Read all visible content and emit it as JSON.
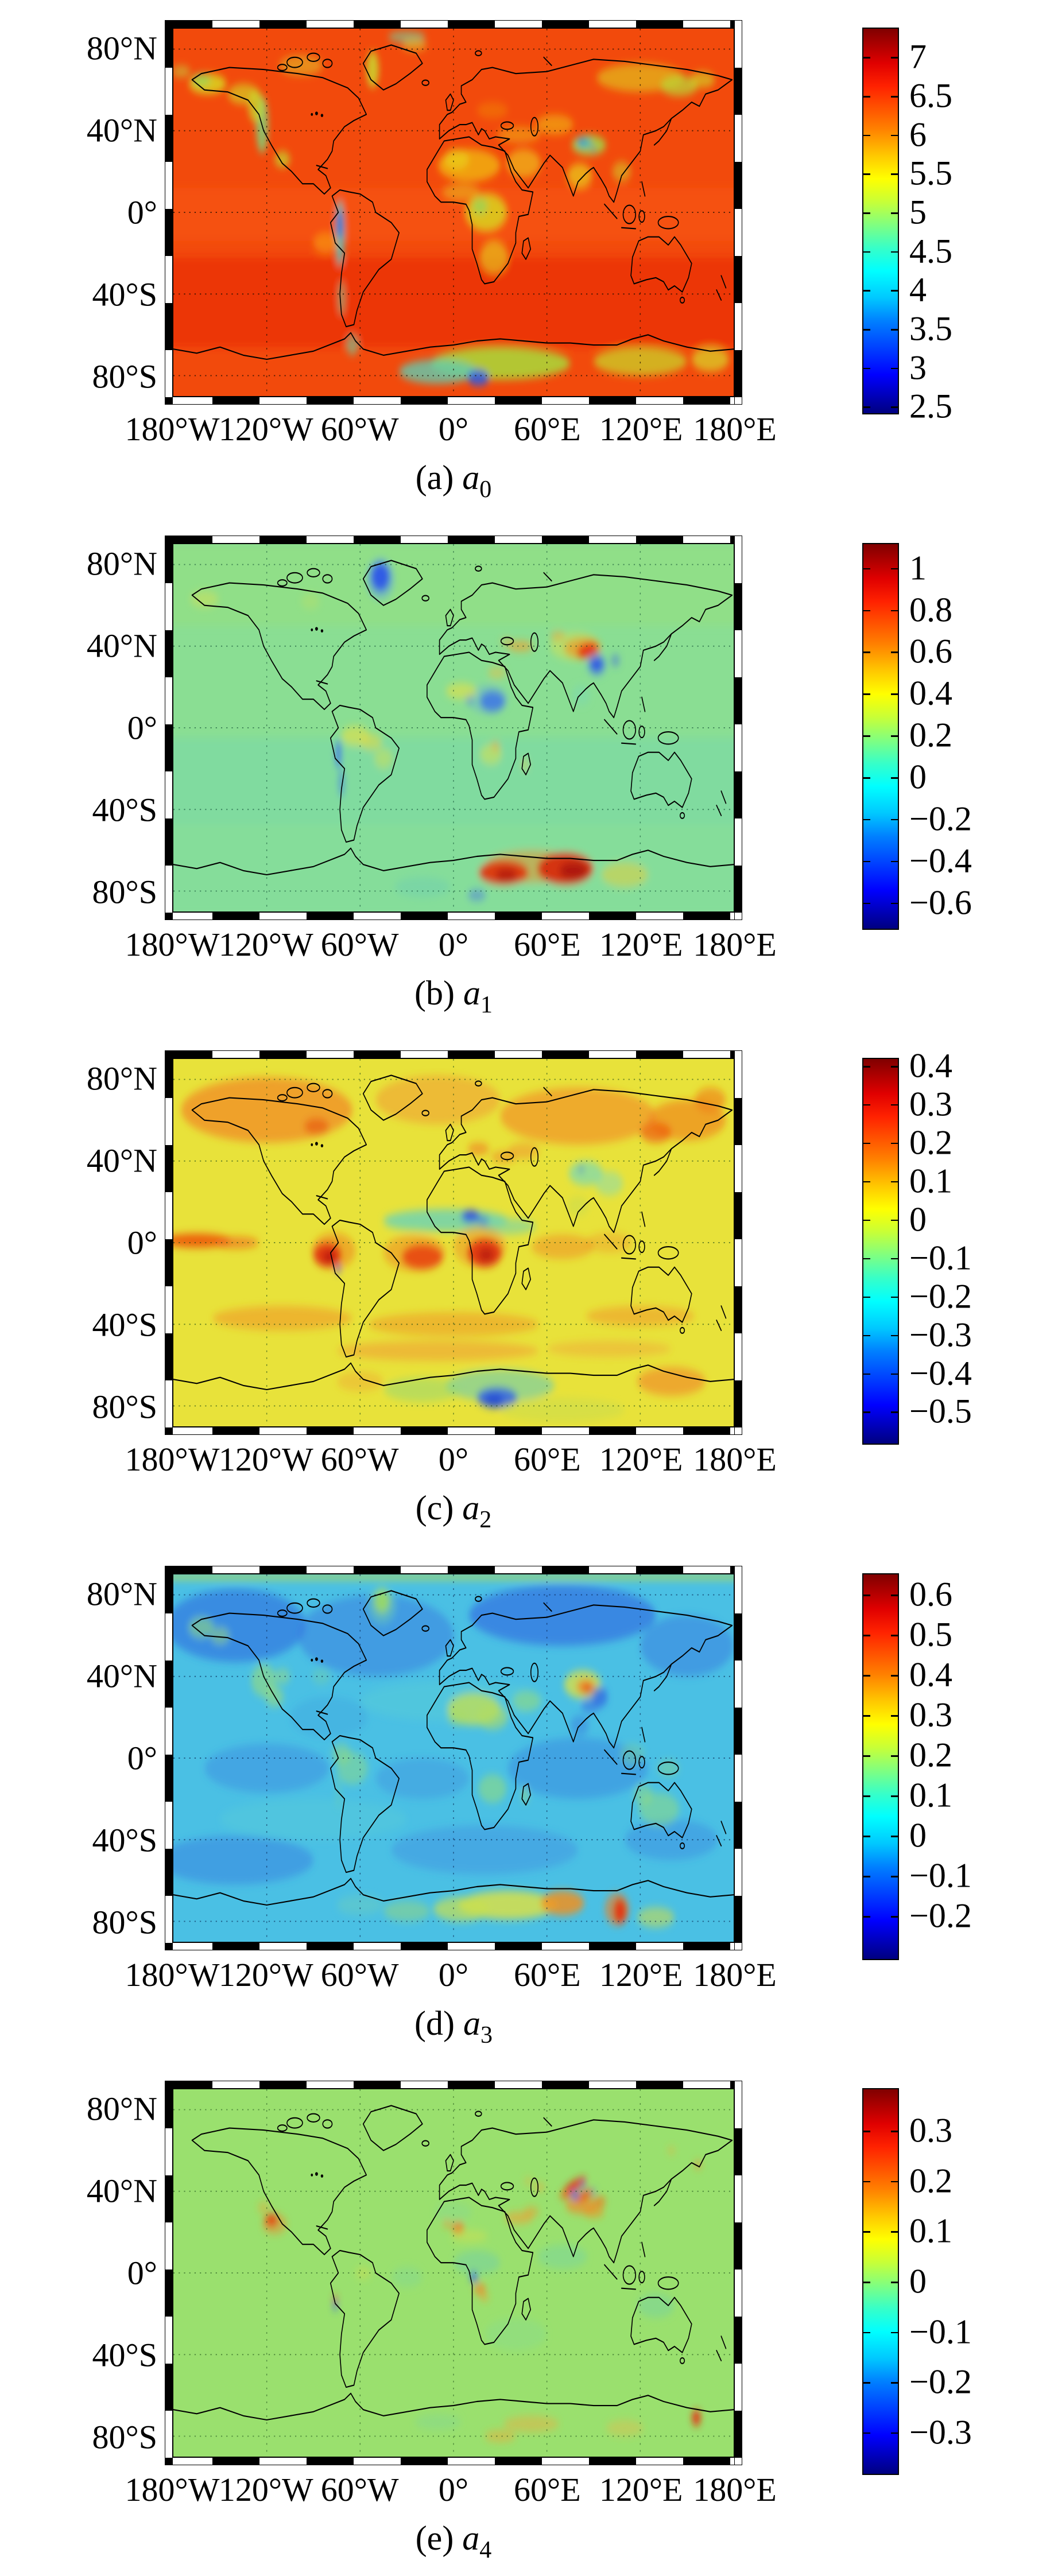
{
  "axes": {
    "lat_ticks": [
      {
        "label": "80°N",
        "deg": 80
      },
      {
        "label": "40°N",
        "deg": 40
      },
      {
        "label": "0°",
        "deg": 0
      },
      {
        "label": "40°S",
        "deg": -40
      },
      {
        "label": "80°S",
        "deg": -80
      }
    ],
    "lon_ticks": [
      {
        "label": "180°W",
        "deg": -180
      },
      {
        "label": "120°W",
        "deg": -120
      },
      {
        "label": "60°W",
        "deg": -60
      },
      {
        "label": "0°",
        "deg": 0
      },
      {
        "label": "60°E",
        "deg": 60
      },
      {
        "label": "120°E",
        "deg": 120
      },
      {
        "label": "180°E",
        "deg": 180
      }
    ]
  },
  "chart_data": [
    {
      "type": "heatmap",
      "panel": "a",
      "caption_prefix": "(a)",
      "caption_var": "a",
      "caption_sub": "0",
      "colormap": "jet",
      "base_color": "#f24a0c",
      "projection": "equirectangular world map, 180W-180E, 90S-90N",
      "colorbar": {
        "min": 2.4,
        "max": 7.38,
        "ticks": [
          {
            "label": "7",
            "value": 7
          },
          {
            "label": "6.5",
            "value": 6.5
          },
          {
            "label": "6",
            "value": 6
          },
          {
            "label": "5.5",
            "value": 5.5
          },
          {
            "label": "5",
            "value": 5
          },
          {
            "label": "4.5",
            "value": 4.5
          },
          {
            "label": "4",
            "value": 4
          },
          {
            "label": "3.5",
            "value": 3.5
          },
          {
            "label": "3",
            "value": 3
          },
          {
            "label": "2.5",
            "value": 2.5
          }
        ]
      },
      "features": [
        "oceans mostly 6-7 (red/orange)",
        "yellow-green 5-5.5 over Sahara, southern Africa, Arabia, Alaska, Siberia",
        "low 3-4.5 (cyan/blue) along Andes and Himalaya-Tibet",
        "green-cyan band with blue spot (3-5) along Antarctic coast 0-60E"
      ]
    },
    {
      "type": "heatmap",
      "panel": "b",
      "caption_prefix": "(b)",
      "caption_var": "a",
      "caption_sub": "1",
      "colormap": "jet",
      "base_color": "#8ade93",
      "projection": "equirectangular world map, 180W-180E, 90S-90N",
      "colorbar": {
        "min": -0.73,
        "max": 1.12,
        "ticks": [
          {
            "label": "1",
            "value": 1
          },
          {
            "label": "0.8",
            "value": 0.8
          },
          {
            "label": "0.6",
            "value": 0.6
          },
          {
            "label": "0.4",
            "value": 0.4
          },
          {
            "label": "0.2",
            "value": 0.2
          },
          {
            "label": "0",
            "value": 0
          },
          {
            "label": "−0.2",
            "value": -0.2
          },
          {
            "label": "−0.4",
            "value": -0.4
          },
          {
            "label": "−0.6",
            "value": -0.6
          }
        ]
      },
      "features": [
        "background near 0-0.15 (green)",
        "blue minimum (-0.4) over Greenland",
        "red maximum (~0.9) over Tibetan Plateau with blue patch southeast",
        "blue patch over Sudan/Chad",
        "red maxima (~1) over East Antarctica",
        "yellow patches over Amazon, Sahel, southern Africa"
      ]
    },
    {
      "type": "heatmap",
      "panel": "c",
      "caption_prefix": "(c)",
      "caption_var": "a",
      "caption_sub": "2",
      "colormap": "jet",
      "base_color": "#e8e23a",
      "projection": "equirectangular world map, 180W-180E, 90S-90N",
      "colorbar": {
        "min": -0.586,
        "max": 0.421,
        "ticks": [
          {
            "label": "0.4",
            "value": 0.4
          },
          {
            "label": "0.3",
            "value": 0.3
          },
          {
            "label": "0.2",
            "value": 0.2
          },
          {
            "label": "0.1",
            "value": 0.1
          },
          {
            "label": "0",
            "value": 0
          },
          {
            "label": "−0.1",
            "value": -0.1
          },
          {
            "label": "−0.2",
            "value": -0.2
          },
          {
            "label": "−0.3",
            "value": -0.3
          },
          {
            "label": "−0.4",
            "value": -0.4
          },
          {
            "label": "−0.5",
            "value": -0.5
          }
        ]
      },
      "features": [
        "background ~0 (yellow) with orange bands (0.1-0.2) at high northern latitudes and 50-60S",
        "red maxima (0.3-0.4) near equator: Peru coast, tropical Atlantic, central Africa",
        "cyan band with blue core (-0.3 to -0.5) just north of equator over Africa",
        "blue minimum over East Antarctica interior"
      ]
    },
    {
      "type": "heatmap",
      "panel": "d",
      "caption_prefix": "(d)",
      "caption_var": "a",
      "caption_sub": "3",
      "colormap": "jet",
      "base_color": "#4ac0e4",
      "projection": "equirectangular world map, 180W-180E, 90S-90N",
      "colorbar": {
        "min": -0.31,
        "max": 0.653,
        "ticks": [
          {
            "label": "0.6",
            "value": 0.6
          },
          {
            "label": "0.5",
            "value": 0.5
          },
          {
            "label": "0.4",
            "value": 0.4
          },
          {
            "label": "0.3",
            "value": 0.3
          },
          {
            "label": "0.2",
            "value": 0.2
          },
          {
            "label": "0.1",
            "value": 0.1
          },
          {
            "label": "0",
            "value": 0
          },
          {
            "label": "−0.1",
            "value": -0.1
          },
          {
            "label": "−0.2",
            "value": -0.2
          }
        ]
      },
      "features": [
        "background ~0 (cyan) with mottled blue patches (-0.1) over oceans and high north",
        "orange-red maximum (0.4-0.6) over Tibetan Plateau with yellow halo",
        "yellow-green (0.2-0.3) over Sahara and Greenland",
        "yellow/orange band and red spot (0.3-0.5) over East Antarctica"
      ]
    },
    {
      "type": "heatmap",
      "panel": "e",
      "caption_prefix": "(e)",
      "caption_var": "a",
      "caption_sub": "4",
      "colormap": "jet",
      "base_color": "#9ae06e",
      "projection": "equirectangular world map, 180W-180E, 90S-90N",
      "colorbar": {
        "min": -0.385,
        "max": 0.385,
        "ticks": [
          {
            "label": "0.3",
            "value": 0.3
          },
          {
            "label": "0.2",
            "value": 0.2
          },
          {
            "label": "0.1",
            "value": 0.1
          },
          {
            "label": "0",
            "value": 0
          },
          {
            "label": "−0.1",
            "value": -0.1
          },
          {
            "label": "−0.2",
            "value": -0.2
          },
          {
            "label": "−0.3",
            "value": -0.3
          }
        ]
      },
      "features": [
        "background ~0 (green)",
        "red/orange streaks (0.2-0.3) with small blue spots over central Asia and Pakistan",
        "red spot over Mexico",
        "orange spots NW Africa, Arabia, Angola",
        "cyan patches (-0.1) over tropical Africa and Indian Ocean",
        "red spot at Antarctic coast near 155E"
      ]
    }
  ]
}
